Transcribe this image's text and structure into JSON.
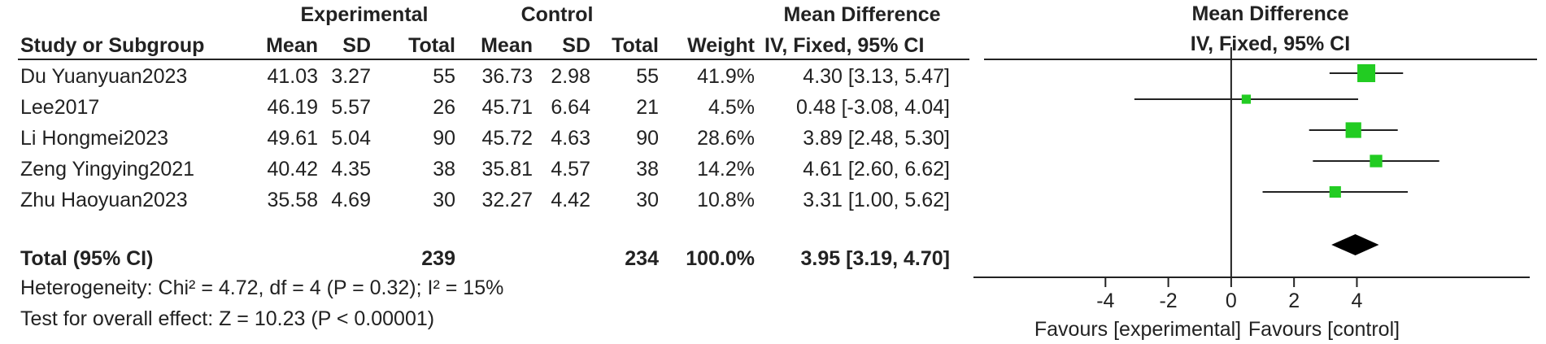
{
  "group_headers": {
    "experimental": "Experimental",
    "control": "Control",
    "mean_difference_table": "Mean Difference",
    "mean_difference_plot": "Mean Difference"
  },
  "columns": {
    "study": "Study or Subgroup",
    "exp_mean": "Mean",
    "exp_sd": "SD",
    "exp_total": "Total",
    "ctl_mean": "Mean",
    "ctl_sd": "SD",
    "ctl_total": "Total",
    "weight": "Weight",
    "ci": "IV, Fixed, 95% CI",
    "plot_ci": "IV, Fixed, 95% CI"
  },
  "studies": [
    {
      "name": "Du Yuanyuan2023",
      "exp_mean": "41.03",
      "exp_sd": "3.27",
      "exp_total": "55",
      "ctl_mean": "36.73",
      "ctl_sd": "2.98",
      "ctl_total": "55",
      "weight": "41.9%",
      "ci": "4.30 [3.13, 5.47]"
    },
    {
      "name": "Lee2017",
      "exp_mean": "46.19",
      "exp_sd": "5.57",
      "exp_total": "26",
      "ctl_mean": "45.71",
      "ctl_sd": "6.64",
      "ctl_total": "21",
      "weight": "4.5%",
      "ci": "0.48 [-3.08, 4.04]"
    },
    {
      "name": "Li Hongmei2023",
      "exp_mean": "49.61",
      "exp_sd": "5.04",
      "exp_total": "90",
      "ctl_mean": "45.72",
      "ctl_sd": "4.63",
      "ctl_total": "90",
      "weight": "28.6%",
      "ci": "3.89 [2.48, 5.30]"
    },
    {
      "name": "Zeng Yingying2021",
      "exp_mean": "40.42",
      "exp_sd": "4.35",
      "exp_total": "38",
      "ctl_mean": "35.81",
      "ctl_sd": "4.57",
      "ctl_total": "38",
      "weight": "14.2%",
      "ci": "4.61 [2.60, 6.62]"
    },
    {
      "name": "Zhu Haoyuan2023",
      "exp_mean": "35.58",
      "exp_sd": "4.69",
      "exp_total": "30",
      "ctl_mean": "32.27",
      "ctl_sd": "4.42",
      "ctl_total": "30",
      "weight": "10.8%",
      "ci": "3.31 [1.00, 5.62]"
    }
  ],
  "total": {
    "label": "Total (95% CI)",
    "exp_total": "239",
    "ctl_total": "234",
    "weight": "100.0%",
    "ci": "3.95 [3.19, 4.70]"
  },
  "footer": {
    "heterogeneity": "Heterogeneity: Chi² = 4.72, df = 4 (P = 0.32); I² = 15%",
    "overall_effect": "Test for overall effect: Z = 10.23 (P < 0.00001)"
  },
  "plot_labels": {
    "favours_left": "Favours [experimental]",
    "favours_right": "Favours [control]"
  },
  "colors": {
    "marker": "#22cc22",
    "diamond": "#000000",
    "line": "#222222"
  },
  "chart_data": {
    "type": "forest",
    "x_ticks": [
      -4,
      -2,
      0,
      2,
      4
    ],
    "xlim": [
      -8.2,
      9.5
    ],
    "null_line": 0,
    "studies": [
      {
        "name": "Du Yuanyuan2023",
        "estimate": 4.3,
        "lower": 3.13,
        "upper": 5.47,
        "weight": 41.9
      },
      {
        "name": "Lee2017",
        "estimate": 0.48,
        "lower": -3.08,
        "upper": 4.04,
        "weight": 4.5
      },
      {
        "name": "Li Hongmei2023",
        "estimate": 3.89,
        "lower": 2.48,
        "upper": 5.3,
        "weight": 28.6
      },
      {
        "name": "Zeng Yingying2021",
        "estimate": 4.61,
        "lower": 2.6,
        "upper": 6.62,
        "weight": 14.2
      },
      {
        "name": "Zhu Haoyuan2023",
        "estimate": 3.31,
        "lower": 1.0,
        "upper": 5.62,
        "weight": 10.8
      }
    ],
    "pooled": {
      "estimate": 3.95,
      "lower": 3.19,
      "upper": 4.7
    }
  }
}
